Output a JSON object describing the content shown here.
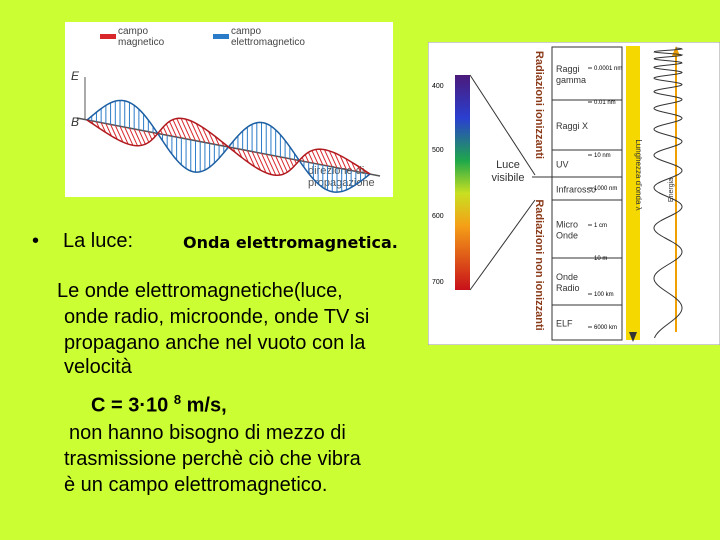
{
  "wave_figure": {
    "legend": [
      {
        "lines": [
          "campo",
          "magnetico"
        ],
        "color": "#d9262b"
      },
      {
        "lines": [
          "campo",
          "elettromagnetico"
        ],
        "color": "#2a7bc8"
      }
    ],
    "e_label": "E",
    "b_label": "B",
    "direction": [
      "direzione di",
      "propagazione"
    ]
  },
  "bullet": {
    "label": "La luce:",
    "emphasis": "Onda elettromagnetica."
  },
  "paragraph": {
    "lines": [
      "Le onde elettromagnetiche(luce,",
      "onde radio, microonde, onde TV si",
      "propagano anche nel vuoto con la",
      "velocità"
    ],
    "formula": {
      "base": "C = 3·10",
      "exponent": "8",
      "unit": "m/s,"
    },
    "closing": [
      "non hanno bisogno di mezzo di",
      "trasmissione perchè ciò che vibra",
      "è un campo elettromagnetico."
    ]
  },
  "spectrum": {
    "nm_scale": [
      "400",
      "500",
      "600",
      "700"
    ],
    "visible_label": [
      "Luce",
      "visibile"
    ],
    "groups": [
      "Radiazioni ionizzanti",
      "Radiazioni non ionizzanti"
    ],
    "bands": [
      [
        "Raggi",
        "gamma"
      ],
      [
        "Raggi X"
      ],
      [
        "UV"
      ],
      [
        "Infrarosso"
      ],
      [
        "Micro",
        "Onde"
      ],
      [
        "Onde",
        "Radio"
      ],
      [
        "ELF"
      ]
    ],
    "wavelengths": [
      "0.0001 nm",
      "0.01 nm",
      "10 nm",
      "1000 nm",
      "1 cm",
      "10 m",
      "100 km",
      "6000 km"
    ],
    "wavelength_axis": "Lunghezza d'onda λ",
    "energy_axis": "Energia"
  }
}
